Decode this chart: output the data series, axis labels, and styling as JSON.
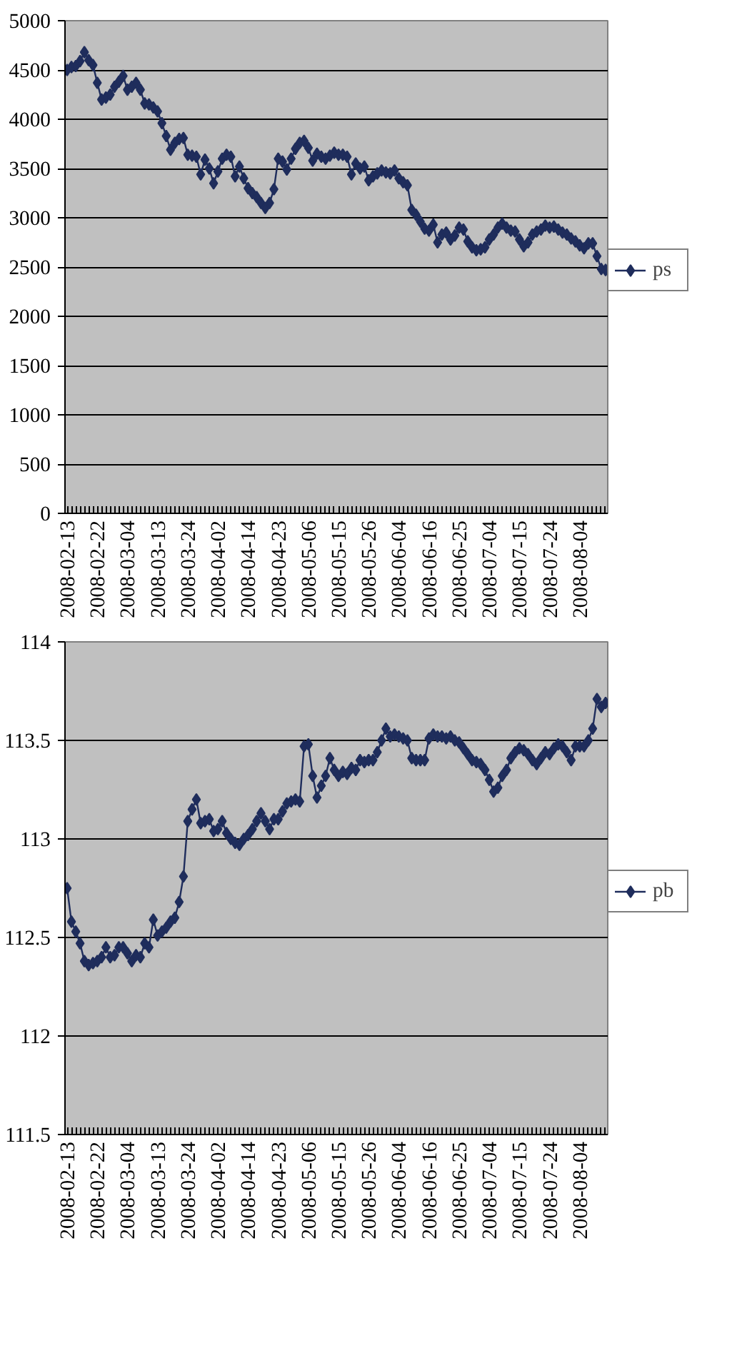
{
  "chart_data": [
    {
      "type": "line",
      "marker": "diamond",
      "grid": "y",
      "legend": "right",
      "ylim": [
        0,
        5000
      ],
      "yticks": [
        0,
        500,
        1000,
        1500,
        2000,
        2500,
        3000,
        3500,
        4000,
        4500,
        5000
      ],
      "categories": [
        "2008-02-13",
        null,
        null,
        null,
        null,
        null,
        null,
        "2008-02-22",
        null,
        null,
        null,
        null,
        null,
        null,
        "2008-03-04",
        null,
        null,
        null,
        null,
        null,
        null,
        "2008-03-13",
        null,
        null,
        null,
        null,
        null,
        null,
        "2008-03-24",
        null,
        null,
        null,
        null,
        null,
        null,
        "2008-04-02",
        null,
        null,
        null,
        null,
        null,
        null,
        "2008-04-14",
        null,
        null,
        null,
        null,
        null,
        null,
        "2008-04-23",
        null,
        null,
        null,
        null,
        null,
        null,
        "2008-05-06",
        null,
        null,
        null,
        null,
        null,
        null,
        "2008-05-15",
        null,
        null,
        null,
        null,
        null,
        null,
        "2008-05-26",
        null,
        null,
        null,
        null,
        null,
        null,
        "2008-06-04",
        null,
        null,
        null,
        null,
        null,
        null,
        "2008-06-16",
        null,
        null,
        null,
        null,
        null,
        null,
        "2008-06-25",
        null,
        null,
        null,
        null,
        null,
        null,
        "2008-07-04",
        null,
        null,
        null,
        null,
        null,
        null,
        "2008-07-15",
        null,
        null,
        null,
        null,
        null,
        null,
        "2008-07-24",
        null,
        null,
        null,
        null,
        null,
        null,
        "2008-08-04",
        null,
        null,
        null,
        null,
        null,
        null
      ],
      "series": [
        {
          "name": "ps",
          "color": "#1f2d5c",
          "values": [
            4500,
            4530,
            4540,
            4590,
            4680,
            4600,
            4550,
            4370,
            4200,
            4220,
            4250,
            4330,
            4380,
            4440,
            4300,
            4330,
            4370,
            4300,
            4160,
            4150,
            4120,
            4080,
            3960,
            3830,
            3690,
            3760,
            3800,
            3810,
            3640,
            3630,
            3620,
            3440,
            3590,
            3500,
            3350,
            3470,
            3600,
            3640,
            3620,
            3420,
            3520,
            3400,
            3300,
            3250,
            3210,
            3150,
            3100,
            3150,
            3290,
            3600,
            3570,
            3490,
            3600,
            3700,
            3760,
            3780,
            3710,
            3580,
            3650,
            3620,
            3600,
            3630,
            3660,
            3640,
            3640,
            3620,
            3440,
            3550,
            3500,
            3520,
            3380,
            3420,
            3450,
            3480,
            3460,
            3450,
            3480,
            3400,
            3360,
            3330,
            3080,
            3030,
            2960,
            2890,
            2870,
            2930,
            2750,
            2830,
            2850,
            2780,
            2820,
            2900,
            2880,
            2760,
            2700,
            2670,
            2680,
            2700,
            2780,
            2830,
            2900,
            2940,
            2900,
            2870,
            2860,
            2780,
            2710,
            2750,
            2830,
            2860,
            2880,
            2920,
            2900,
            2910,
            2880,
            2850,
            2830,
            2790,
            2760,
            2720,
            2690,
            2740,
            2740,
            2610,
            2480,
            2470
          ]
        }
      ]
    },
    {
      "type": "line",
      "marker": "diamond",
      "grid": "y",
      "legend": "right",
      "ylim": [
        111.5,
        114
      ],
      "yticks": [
        111.5,
        112,
        112.5,
        113,
        113.5,
        114
      ],
      "categories": [
        "2008-02-13",
        null,
        null,
        null,
        null,
        null,
        null,
        "2008-02-22",
        null,
        null,
        null,
        null,
        null,
        null,
        "2008-03-04",
        null,
        null,
        null,
        null,
        null,
        null,
        "2008-03-13",
        null,
        null,
        null,
        null,
        null,
        null,
        "2008-03-24",
        null,
        null,
        null,
        null,
        null,
        null,
        "2008-04-02",
        null,
        null,
        null,
        null,
        null,
        null,
        "2008-04-14",
        null,
        null,
        null,
        null,
        null,
        null,
        "2008-04-23",
        null,
        null,
        null,
        null,
        null,
        null,
        "2008-05-06",
        null,
        null,
        null,
        null,
        null,
        null,
        "2008-05-15",
        null,
        null,
        null,
        null,
        null,
        null,
        "2008-05-26",
        null,
        null,
        null,
        null,
        null,
        null,
        "2008-06-04",
        null,
        null,
        null,
        null,
        null,
        null,
        "2008-06-16",
        null,
        null,
        null,
        null,
        null,
        null,
        "2008-06-25",
        null,
        null,
        null,
        null,
        null,
        null,
        "2008-07-04",
        null,
        null,
        null,
        null,
        null,
        null,
        "2008-07-15",
        null,
        null,
        null,
        null,
        null,
        null,
        "2008-07-24",
        null,
        null,
        null,
        null,
        null,
        null,
        "2008-08-04",
        null,
        null,
        null,
        null,
        null,
        null
      ],
      "series": [
        {
          "name": "pb",
          "color": "#1f2d5c",
          "values": [
            112.75,
            112.58,
            112.53,
            112.47,
            112.38,
            112.36,
            112.37,
            112.38,
            112.4,
            112.45,
            112.4,
            112.41,
            112.45,
            112.45,
            112.42,
            112.38,
            112.41,
            112.4,
            112.47,
            112.45,
            112.59,
            112.51,
            112.53,
            112.55,
            112.58,
            112.6,
            112.68,
            112.81,
            113.09,
            113.15,
            113.2,
            113.08,
            113.09,
            113.1,
            113.04,
            113.05,
            113.09,
            113.03,
            113.0,
            112.98,
            112.97,
            113.0,
            113.02,
            113.05,
            113.09,
            113.13,
            113.09,
            113.05,
            113.1,
            113.1,
            113.14,
            113.18,
            113.19,
            113.2,
            113.19,
            113.47,
            113.48,
            113.32,
            113.21,
            113.27,
            113.32,
            113.41,
            113.35,
            113.32,
            113.34,
            113.33,
            113.36,
            113.35,
            113.4,
            113.39,
            113.4,
            113.4,
            113.44,
            113.5,
            113.56,
            113.52,
            113.53,
            113.52,
            113.51,
            113.5,
            113.41,
            113.4,
            113.4,
            113.4,
            113.51,
            113.53,
            113.52,
            113.52,
            113.51,
            113.52,
            113.5,
            113.49,
            113.46,
            113.43,
            113.4,
            113.39,
            113.38,
            113.35,
            113.3,
            113.24,
            113.26,
            113.32,
            113.35,
            113.41,
            113.44,
            113.46,
            113.45,
            113.43,
            113.4,
            113.38,
            113.41,
            113.44,
            113.43,
            113.46,
            113.48,
            113.47,
            113.44,
            113.4,
            113.47,
            113.47,
            113.47,
            113.5,
            113.56,
            113.71,
            113.67,
            113.69
          ]
        }
      ]
    }
  ]
}
